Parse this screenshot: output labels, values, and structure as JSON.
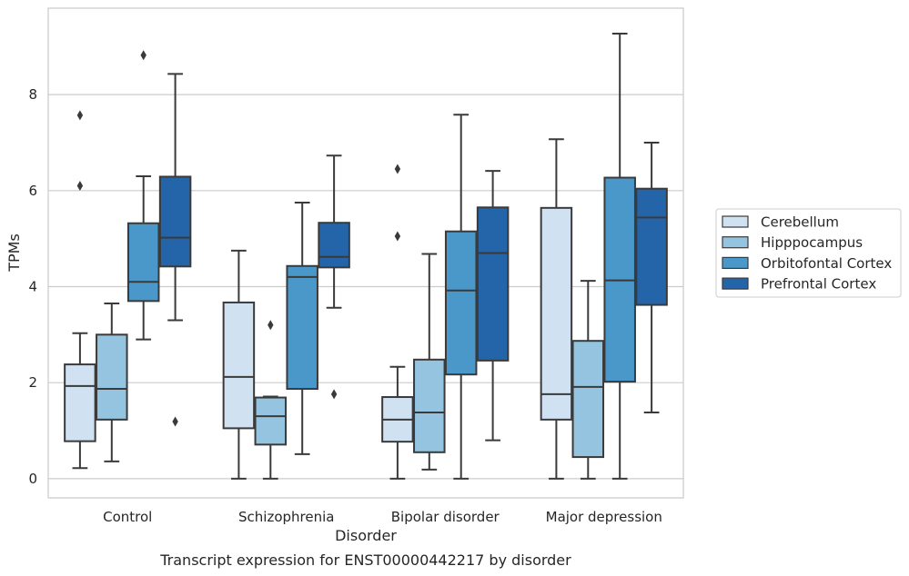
{
  "chart_data": {
    "type": "box",
    "caption": "Transcript expression for ENST00000442217 by disorder",
    "xlabel": "Disorder",
    "ylabel": "TPMs",
    "ylim": [
      -0.4,
      9.8
    ],
    "yticks": [
      0,
      2,
      4,
      6,
      8
    ],
    "grid": true,
    "legend_position": "right",
    "categories": [
      "Control",
      "Schizophrenia",
      "Bipolar disorder",
      "Major depression"
    ],
    "series": [
      {
        "name": "Cerebellum",
        "color": "#d0e1f2",
        "boxes": [
          {
            "whisker_low": 0.22,
            "q1": 0.78,
            "median": 1.93,
            "q3": 2.38,
            "whisker_high": 3.03,
            "outliers": [
              6.1,
              7.57
            ]
          },
          {
            "whisker_low": 0.0,
            "q1": 1.05,
            "median": 2.12,
            "q3": 3.67,
            "whisker_high": 4.75,
            "outliers": []
          },
          {
            "whisker_low": 0.0,
            "q1": 0.77,
            "median": 1.23,
            "q3": 1.7,
            "whisker_high": 2.33,
            "outliers": [
              5.05,
              6.45
            ]
          },
          {
            "whisker_low": 0.0,
            "q1": 1.23,
            "median": 1.76,
            "q3": 5.64,
            "whisker_high": 7.07,
            "outliers": []
          }
        ]
      },
      {
        "name": "Hipppocampus",
        "color": "#94c4df",
        "boxes": [
          {
            "whisker_low": 0.36,
            "q1": 1.23,
            "median": 1.87,
            "q3": 3.0,
            "whisker_high": 3.65,
            "outliers": []
          },
          {
            "whisker_low": 0.0,
            "q1": 0.71,
            "median": 1.3,
            "q3": 1.69,
            "whisker_high": 1.71,
            "outliers": [
              3.2
            ]
          },
          {
            "whisker_low": 0.19,
            "q1": 0.55,
            "median": 1.38,
            "q3": 2.48,
            "whisker_high": 4.68,
            "outliers": []
          },
          {
            "whisker_low": 0.0,
            "q1": 0.45,
            "median": 1.91,
            "q3": 2.87,
            "whisker_high": 4.12,
            "outliers": []
          }
        ]
      },
      {
        "name": "Orbitofontal Cortex",
        "color": "#4a98c9",
        "boxes": [
          {
            "whisker_low": 2.9,
            "q1": 3.7,
            "median": 4.1,
            "q3": 5.32,
            "whisker_high": 6.3,
            "outliers": [
              8.82
            ]
          },
          {
            "whisker_low": 0.51,
            "q1": 1.87,
            "median": 4.2,
            "q3": 4.43,
            "whisker_high": 5.75,
            "outliers": []
          },
          {
            "whisker_low": 0.0,
            "q1": 2.17,
            "median": 3.92,
            "q3": 5.15,
            "whisker_high": 7.58,
            "outliers": []
          },
          {
            "whisker_low": 0.0,
            "q1": 2.02,
            "median": 4.13,
            "q3": 6.27,
            "whisker_high": 9.27,
            "outliers": []
          }
        ]
      },
      {
        "name": "Prefrontal Cortex",
        "color": "#2464a8",
        "boxes": [
          {
            "whisker_low": 3.3,
            "q1": 4.42,
            "median": 5.02,
            "q3": 6.29,
            "whisker_high": 8.43,
            "outliers": [
              1.19
            ]
          },
          {
            "whisker_low": 3.56,
            "q1": 4.4,
            "median": 4.62,
            "q3": 5.33,
            "whisker_high": 6.73,
            "outliers": [
              1.76
            ]
          },
          {
            "whisker_low": 0.8,
            "q1": 2.46,
            "median": 4.7,
            "q3": 5.65,
            "whisker_high": 6.41,
            "outliers": []
          },
          {
            "whisker_low": 1.38,
            "q1": 3.62,
            "median": 5.44,
            "q3": 6.04,
            "whisker_high": 7.0,
            "outliers": []
          }
        ]
      }
    ]
  }
}
